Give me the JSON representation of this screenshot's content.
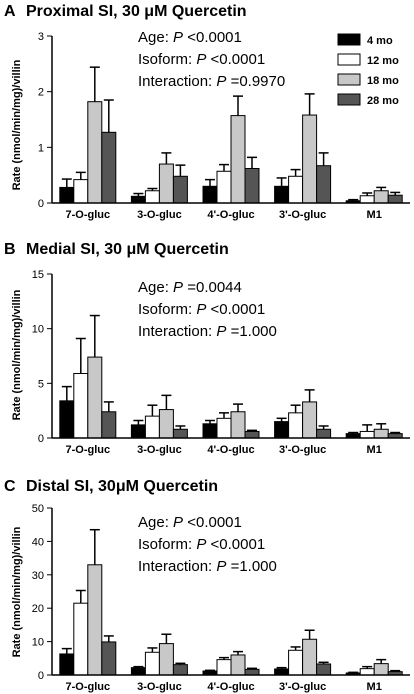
{
  "colors": {
    "4 mo": "#000000",
    "12 mo": "#ffffff",
    "18 mo": "#c8c8c8",
    "28 mo": "#555555"
  },
  "chart_data": [
    {
      "type": "bar",
      "panel": "A",
      "title": "Proximal SI, 30 μM Quercetin",
      "ylabel": "Rate (nmol/min/mg)/villin",
      "ylim": [
        0,
        3
      ],
      "yticks": [
        0,
        1,
        2,
        3
      ],
      "categories": [
        "7-O-gluc",
        "3-O-gluc",
        "4'-O-gluc",
        "3'-O-gluc",
        "M1"
      ],
      "legend": "top-right",
      "series": [
        {
          "name": "4 mo",
          "values": [
            0.28,
            0.12,
            0.3,
            0.3,
            0.04
          ],
          "errors": [
            0.15,
            0.05,
            0.12,
            0.15,
            0.02
          ]
        },
        {
          "name": "12 mo",
          "values": [
            0.42,
            0.22,
            0.57,
            0.48,
            0.13
          ],
          "errors": [
            0.13,
            0.04,
            0.12,
            0.12,
            0.05
          ]
        },
        {
          "name": "18 mo",
          "values": [
            1.82,
            0.7,
            1.57,
            1.58,
            0.22
          ],
          "errors": [
            0.62,
            0.2,
            0.35,
            0.38,
            0.06
          ]
        },
        {
          "name": "28 mo",
          "values": [
            1.27,
            0.48,
            0.62,
            0.67,
            0.14
          ],
          "errors": [
            0.58,
            0.2,
            0.2,
            0.23,
            0.05
          ]
        }
      ],
      "stats": [
        {
          "label": "Age: ",
          "p": "P",
          "value": " <0.0001"
        },
        {
          "label": "Isoform: ",
          "p": "P",
          "value": " <0.0001"
        },
        {
          "label": "Interaction: ",
          "p": "P",
          "value": " =0.9970"
        }
      ]
    },
    {
      "type": "bar",
      "panel": "B",
      "title": "Medial SI, 30 μM Quercetin",
      "ylabel": "Rate (nmol/min/mg)/villin",
      "ylim": [
        0,
        15
      ],
      "yticks": [
        0,
        5,
        10,
        15
      ],
      "categories": [
        "7-O-gluc",
        "3-O-gluc",
        "4'-O-gluc",
        "3'-O-gluc",
        "M1"
      ],
      "series": [
        {
          "name": "4 mo",
          "values": [
            3.4,
            1.2,
            1.3,
            1.5,
            0.4
          ],
          "errors": [
            1.3,
            0.4,
            0.3,
            0.3,
            0.1
          ]
        },
        {
          "name": "12 mo",
          "values": [
            5.9,
            2.0,
            1.8,
            2.3,
            0.6
          ],
          "errors": [
            3.2,
            1.0,
            0.5,
            0.7,
            0.6
          ]
        },
        {
          "name": "18 mo",
          "values": [
            7.4,
            2.6,
            2.4,
            3.3,
            0.8
          ],
          "errors": [
            3.8,
            1.3,
            0.7,
            1.1,
            0.5
          ]
        },
        {
          "name": "28 mo",
          "values": [
            2.4,
            0.8,
            0.6,
            0.8,
            0.4
          ],
          "errors": [
            0.9,
            0.3,
            0.1,
            0.3,
            0.1
          ]
        }
      ],
      "stats": [
        {
          "label": "Age: ",
          "p": "P",
          "value": " =0.0044"
        },
        {
          "label": "Isoform: ",
          "p": "P",
          "value": " <0.0001"
        },
        {
          "label": "Interaction: ",
          "p": "P",
          "value": " =1.000"
        }
      ]
    },
    {
      "type": "bar",
      "panel": "C",
      "title": "Distal SI, 30μM Quercetin",
      "ylabel": "Rate (nmol/min/mg)/villin",
      "ylim": [
        0,
        50
      ],
      "yticks": [
        0,
        10,
        20,
        30,
        40,
        50
      ],
      "categories": [
        "7-O-gluc",
        "3-O-gluc",
        "4'-O-gluc",
        "3'-O-gluc",
        "M1"
      ],
      "series": [
        {
          "name": "4 mo",
          "values": [
            6.3,
            2.2,
            1.2,
            1.8,
            0.6
          ],
          "errors": [
            1.6,
            0.3,
            0.2,
            0.4,
            0.2
          ]
        },
        {
          "name": "12 mo",
          "values": [
            21.5,
            6.8,
            4.6,
            7.4,
            1.9
          ],
          "errors": [
            3.8,
            1.3,
            0.6,
            1.0,
            0.6
          ]
        },
        {
          "name": "18 mo",
          "values": [
            33.0,
            9.4,
            6.0,
            10.7,
            3.4
          ],
          "errors": [
            10.5,
            2.8,
            1.0,
            2.7,
            1.2
          ]
        },
        {
          "name": "28 mo",
          "values": [
            9.9,
            3.1,
            1.7,
            3.3,
            1.0
          ],
          "errors": [
            1.8,
            0.4,
            0.3,
            0.5,
            0.3
          ]
        }
      ],
      "stats": [
        {
          "label": "Age: ",
          "p": "P",
          "value": " <0.0001"
        },
        {
          "label": "Isoform: ",
          "p": "P",
          "value": " <0.0001"
        },
        {
          "label": "Interaction: ",
          "p": "P",
          "value": " =1.000"
        }
      ]
    }
  ]
}
